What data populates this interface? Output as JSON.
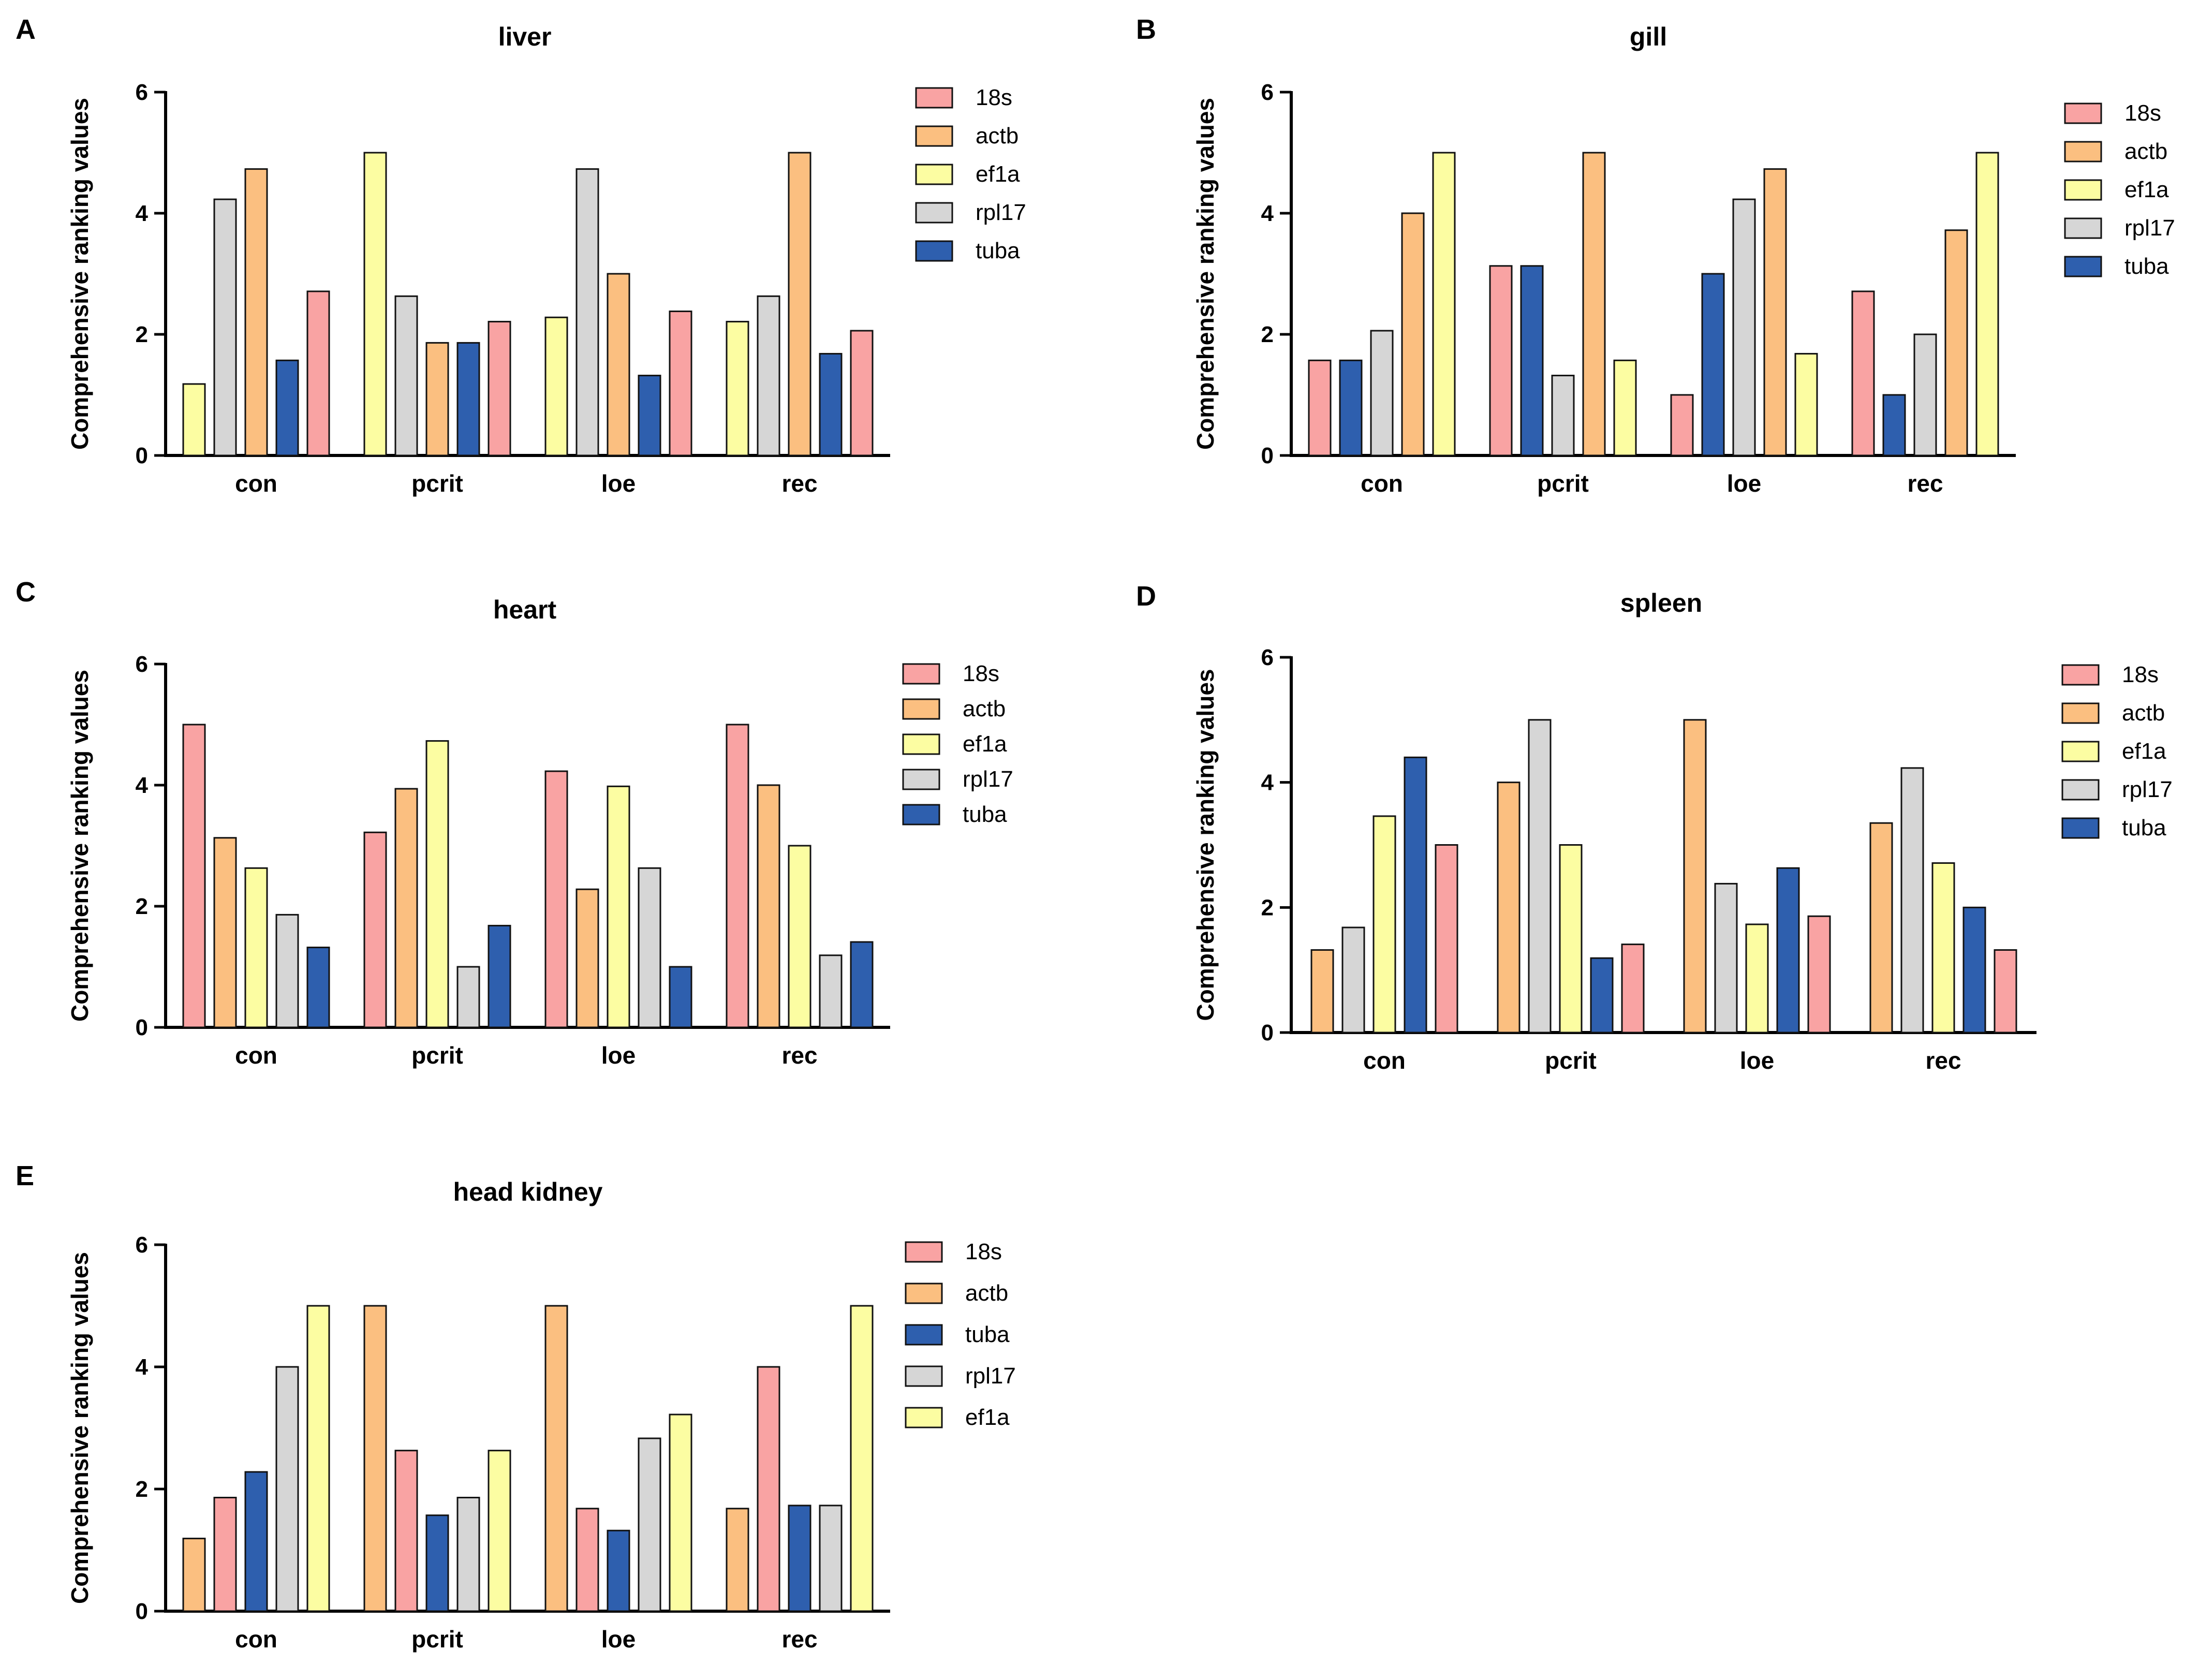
{
  "colors": {
    "18s": "#F9A3A3",
    "actb": "#FBBF80",
    "ef1a": "#FCFDA2",
    "rpl17": "#D6D6D6",
    "tuba": "#2E5FAE",
    "bar_edge": "#111111",
    "axis": "#000000"
  },
  "chart_data": [
    {
      "panel": "A",
      "type": "bar",
      "title": "liver",
      "xlabel": "",
      "ylabel": "Comprehensive ranking values",
      "ylim": [
        0,
        6
      ],
      "yticks": [
        0,
        2,
        4,
        6
      ],
      "categories": [
        "con",
        "pcrit",
        "loe",
        "rec"
      ],
      "legend": [
        "18s",
        "actb",
        "ef1a",
        "rpl17",
        "tuba"
      ],
      "bars": [
        [
          {
            "gene": "ef1a",
            "value": 1.18
          },
          {
            "gene": "rpl17",
            "value": 4.23
          },
          {
            "gene": "actb",
            "value": 4.73
          },
          {
            "gene": "tuba",
            "value": 1.57
          },
          {
            "gene": "18s",
            "value": 2.71
          }
        ],
        [
          {
            "gene": "ef1a",
            "value": 5.0
          },
          {
            "gene": "rpl17",
            "value": 2.63
          },
          {
            "gene": "actb",
            "value": 1.86
          },
          {
            "gene": "tuba",
            "value": 1.86
          },
          {
            "gene": "18s",
            "value": 2.21
          }
        ],
        [
          {
            "gene": "ef1a",
            "value": 2.28
          },
          {
            "gene": "rpl17",
            "value": 4.73
          },
          {
            "gene": "actb",
            "value": 3.0
          },
          {
            "gene": "tuba",
            "value": 1.32
          },
          {
            "gene": "18s",
            "value": 2.38
          }
        ],
        [
          {
            "gene": "ef1a",
            "value": 2.21
          },
          {
            "gene": "rpl17",
            "value": 2.63
          },
          {
            "gene": "actb",
            "value": 5.0
          },
          {
            "gene": "tuba",
            "value": 1.68
          },
          {
            "gene": "18s",
            "value": 2.06
          }
        ]
      ]
    },
    {
      "panel": "B",
      "type": "bar",
      "title": "gill",
      "xlabel": "",
      "ylabel": "Comprehensive ranking values",
      "ylim": [
        0,
        6
      ],
      "yticks": [
        0,
        2,
        4,
        6
      ],
      "categories": [
        "con",
        "pcrit",
        "loe",
        "rec"
      ],
      "legend": [
        "18s",
        "actb",
        "ef1a",
        "rpl17",
        "tuba"
      ],
      "bars": [
        [
          {
            "gene": "18s",
            "value": 1.57
          },
          {
            "gene": "tuba",
            "value": 1.57
          },
          {
            "gene": "rpl17",
            "value": 2.06
          },
          {
            "gene": "actb",
            "value": 4.0
          },
          {
            "gene": "ef1a",
            "value": 5.0
          }
        ],
        [
          {
            "gene": "18s",
            "value": 3.13
          },
          {
            "gene": "tuba",
            "value": 3.13
          },
          {
            "gene": "rpl17",
            "value": 1.32
          },
          {
            "gene": "actb",
            "value": 5.0
          },
          {
            "gene": "ef1a",
            "value": 1.57
          }
        ],
        [
          {
            "gene": "18s",
            "value": 1.0
          },
          {
            "gene": "tuba",
            "value": 3.0
          },
          {
            "gene": "rpl17",
            "value": 4.23
          },
          {
            "gene": "actb",
            "value": 4.73
          },
          {
            "gene": "ef1a",
            "value": 1.68
          }
        ],
        [
          {
            "gene": "18s",
            "value": 2.71
          },
          {
            "gene": "tuba",
            "value": 1.0
          },
          {
            "gene": "rpl17",
            "value": 2.0
          },
          {
            "gene": "actb",
            "value": 3.72
          },
          {
            "gene": "ef1a",
            "value": 5.0
          }
        ]
      ]
    },
    {
      "panel": "C",
      "type": "bar",
      "title": "heart",
      "xlabel": "",
      "ylabel": "Comprehensive ranking values",
      "ylim": [
        0,
        6
      ],
      "yticks": [
        0,
        2,
        4,
        6
      ],
      "categories": [
        "con",
        "pcrit",
        "loe",
        "rec"
      ],
      "legend": [
        "18s",
        "actb",
        "ef1a",
        "rpl17",
        "tuba"
      ],
      "bars": [
        [
          {
            "gene": "18s",
            "value": 5.0
          },
          {
            "gene": "actb",
            "value": 3.13
          },
          {
            "gene": "ef1a",
            "value": 2.63
          },
          {
            "gene": "rpl17",
            "value": 1.86
          },
          {
            "gene": "tuba",
            "value": 1.32
          }
        ],
        [
          {
            "gene": "18s",
            "value": 3.22
          },
          {
            "gene": "actb",
            "value": 3.94
          },
          {
            "gene": "ef1a",
            "value": 4.73
          },
          {
            "gene": "rpl17",
            "value": 1.0
          },
          {
            "gene": "tuba",
            "value": 1.68
          }
        ],
        [
          {
            "gene": "18s",
            "value": 4.23
          },
          {
            "gene": "actb",
            "value": 2.28
          },
          {
            "gene": "ef1a",
            "value": 3.98
          },
          {
            "gene": "rpl17",
            "value": 2.63
          },
          {
            "gene": "tuba",
            "value": 1.0
          }
        ],
        [
          {
            "gene": "18s",
            "value": 5.0
          },
          {
            "gene": "actb",
            "value": 4.0
          },
          {
            "gene": "ef1a",
            "value": 3.0
          },
          {
            "gene": "rpl17",
            "value": 1.19
          },
          {
            "gene": "tuba",
            "value": 1.41
          }
        ]
      ]
    },
    {
      "panel": "D",
      "type": "bar",
      "title": "spleen",
      "xlabel": "",
      "ylabel": "Comprehensive ranking values",
      "ylim": [
        0,
        6
      ],
      "yticks": [
        0,
        2,
        4,
        6
      ],
      "categories": [
        "con",
        "pcrit",
        "loe",
        "rec"
      ],
      "legend": [
        "18s",
        "actb",
        "ef1a",
        "rpl17",
        "tuba"
      ],
      "bars": [
        [
          {
            "gene": "actb",
            "value": 1.32
          },
          {
            "gene": "rpl17",
            "value": 1.68
          },
          {
            "gene": "ef1a",
            "value": 3.46
          },
          {
            "gene": "tuba",
            "value": 4.4
          },
          {
            "gene": "18s",
            "value": 3.0
          }
        ],
        [
          {
            "gene": "actb",
            "value": 4.0
          },
          {
            "gene": "rpl17",
            "value": 5.0
          },
          {
            "gene": "ef1a",
            "value": 3.0
          },
          {
            "gene": "tuba",
            "value": 1.19
          },
          {
            "gene": "18s",
            "value": 1.41
          }
        ],
        [
          {
            "gene": "actb",
            "value": 5.0
          },
          {
            "gene": "rpl17",
            "value": 2.38
          },
          {
            "gene": "ef1a",
            "value": 1.73
          },
          {
            "gene": "tuba",
            "value": 2.63
          },
          {
            "gene": "18s",
            "value": 1.86
          }
        ],
        [
          {
            "gene": "actb",
            "value": 3.35
          },
          {
            "gene": "rpl17",
            "value": 4.23
          },
          {
            "gene": "ef1a",
            "value": 2.71
          },
          {
            "gene": "tuba",
            "value": 2.0
          },
          {
            "gene": "18s",
            "value": 1.32
          }
        ]
      ]
    },
    {
      "panel": "E",
      "type": "bar",
      "title": "head kidney",
      "xlabel": "",
      "ylabel": "Comprehensive ranking values",
      "ylim": [
        0,
        6
      ],
      "yticks": [
        0,
        2,
        4,
        6
      ],
      "categories": [
        "con",
        "pcrit",
        "loe",
        "rec"
      ],
      "legend": [
        "18s",
        "actb",
        "tuba",
        "rpl17",
        "ef1a"
      ],
      "bars": [
        [
          {
            "gene": "actb",
            "value": 1.19
          },
          {
            "gene": "18s",
            "value": 1.86
          },
          {
            "gene": "tuba",
            "value": 2.28
          },
          {
            "gene": "rpl17",
            "value": 4.0
          },
          {
            "gene": "ef1a",
            "value": 5.0
          }
        ],
        [
          {
            "gene": "actb",
            "value": 5.0
          },
          {
            "gene": "18s",
            "value": 2.63
          },
          {
            "gene": "tuba",
            "value": 1.57
          },
          {
            "gene": "rpl17",
            "value": 1.86
          },
          {
            "gene": "ef1a",
            "value": 2.63
          }
        ],
        [
          {
            "gene": "actb",
            "value": 5.0
          },
          {
            "gene": "18s",
            "value": 1.68
          },
          {
            "gene": "tuba",
            "value": 1.32
          },
          {
            "gene": "rpl17",
            "value": 2.83
          },
          {
            "gene": "ef1a",
            "value": 3.22
          }
        ],
        [
          {
            "gene": "actb",
            "value": 1.68
          },
          {
            "gene": "18s",
            "value": 4.0
          },
          {
            "gene": "tuba",
            "value": 1.73
          },
          {
            "gene": "rpl17",
            "value": 1.73
          },
          {
            "gene": "ef1a",
            "value": 5.0
          }
        ]
      ]
    }
  ]
}
